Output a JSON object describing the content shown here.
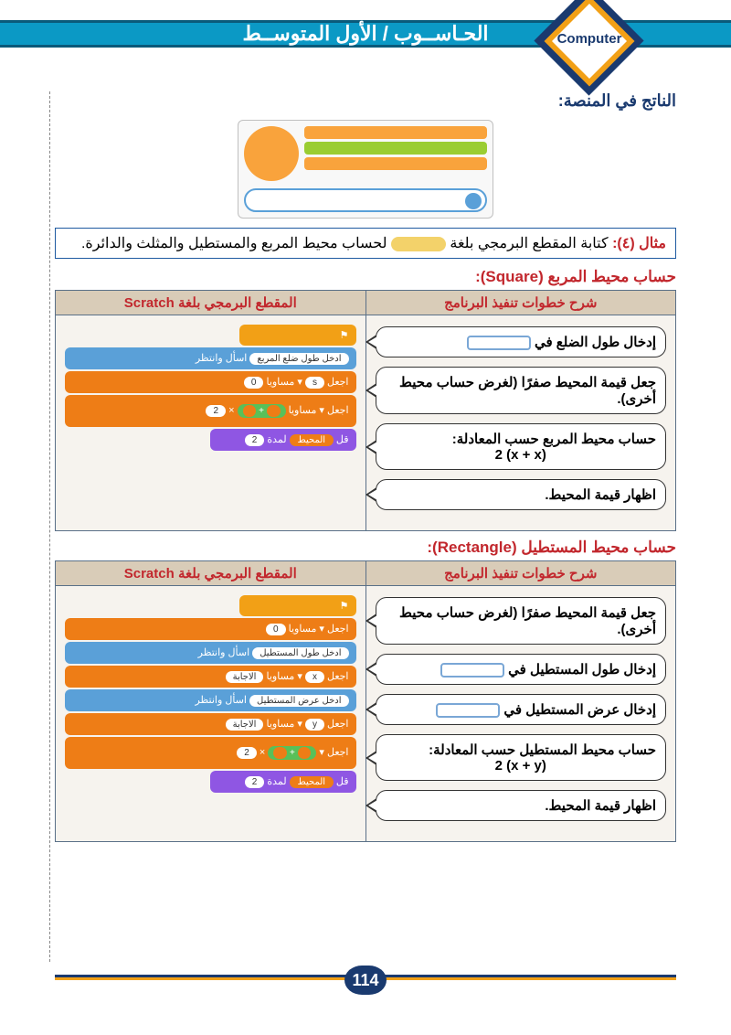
{
  "header": {
    "title": "الحـاســوب / الأول المتوســط",
    "badge": "Computer"
  },
  "result_label": "الناتج في المنصة:",
  "example": {
    "lead": "مثال (٤):",
    "text_a": " كتابة المقطع البرمجي بلغة ",
    "text_b": " لحساب محيط المربع والمستطيل والمثلث والدائرة."
  },
  "square": {
    "title_ar": "حساب محيط المربع ",
    "title_en": "(Square):",
    "col_steps": "شرح خطوات تنفيذ البرنامج",
    "col_code": "المقطع البرمجي بلغة Scratch",
    "steps": [
      "إدخال طول الضلع في",
      "جعل قيمة المحيط صفرًا (لغرض حساب محيط أخرى).",
      "حساب محيط المربع حسب المعادلة:",
      "اظهار قيمة المحيط."
    ],
    "formula": "2 (x + x)",
    "blocks": {
      "b1": "ادخل طول ضلع المربع",
      "b2": "0",
      "b3": "2"
    }
  },
  "rect": {
    "title_ar": "حساب محيط المستطيل ",
    "title_en": "(Rectangle):",
    "col_steps": "شرح خطوات تنفيذ البرنامج",
    "col_code": "المقطع البرمجي بلغة Scratch",
    "steps": [
      "جعل قيمة المحيط صفرًا (لغرض حساب محيط أخرى).",
      "إدخال طول المستطيل في",
      "إدخال عرض المستطيل في",
      "حساب محيط المستطيل حسب المعادلة:",
      "اظهار قيمة المحيط."
    ],
    "formula": "2 (x + y)",
    "blocks": {
      "b1": "0",
      "b2": "ادخل طول المستطيل",
      "b3": "ادخل عرض المستطيل",
      "b4": "2"
    }
  },
  "page_number": "114",
  "colors": {
    "header_bg": "#0b99c5",
    "accent_red": "#c2272d",
    "accent_blue": "#1a3a6f",
    "accent_orange": "#f2a016"
  }
}
